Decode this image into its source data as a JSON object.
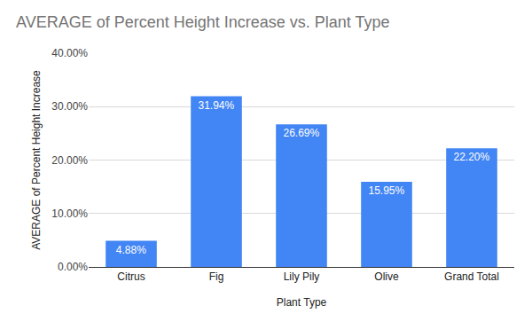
{
  "chart_data": {
    "type": "bar",
    "title": "AVERAGE of Percent Height Increase vs. Plant Type",
    "x_label": "Plant Type",
    "y_label": "AVERAGE of Percent Height Increase",
    "categories": [
      "Citrus",
      "Fig",
      "Lily Pily",
      "Olive",
      "Grand Total"
    ],
    "values": [
      4.88,
      31.94,
      26.69,
      15.95,
      22.2
    ],
    "value_labels": [
      "4.88%",
      "31.94%",
      "26.69%",
      "15.95%",
      "22.20%"
    ],
    "color": "#4285f4",
    "ylim": [
      0,
      40
    ],
    "yticks": [
      {
        "value": 0,
        "label": "0.00%"
      },
      {
        "value": 10,
        "label": "10.00%"
      },
      {
        "value": 20,
        "label": "20.00%"
      },
      {
        "value": 30,
        "label": "30.00%"
      },
      {
        "value": 40,
        "label": "40.00%"
      }
    ],
    "grid": true,
    "data_labels": true
  }
}
